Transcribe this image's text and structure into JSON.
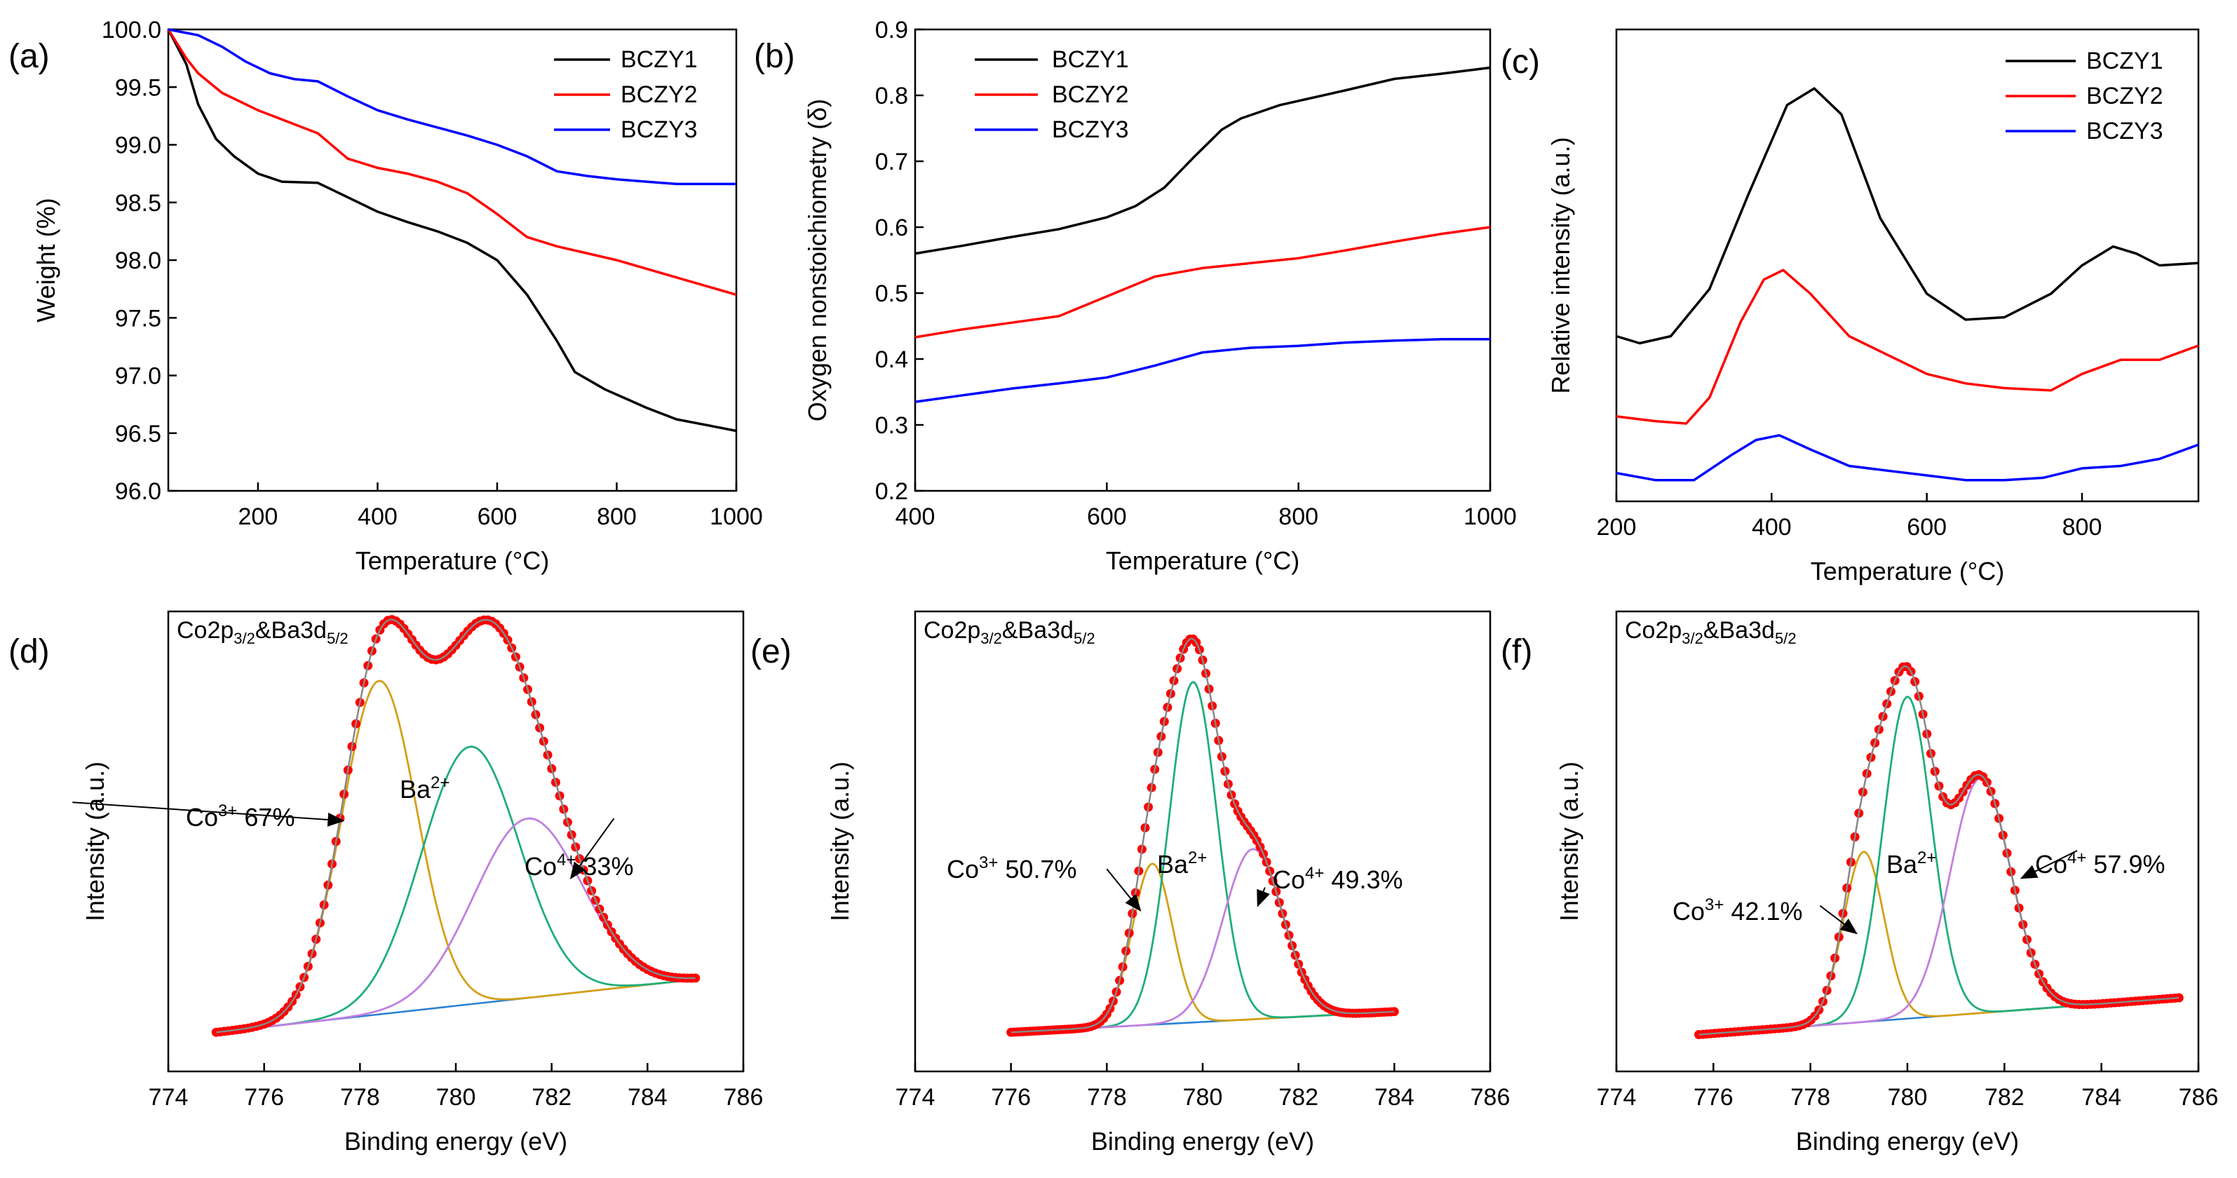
{
  "chart_data": [
    {
      "id": "a",
      "type": "line",
      "panel_label": "(a)",
      "title": "",
      "xlabel": "Temperature (°C)",
      "ylabel": "Weight (%)",
      "xlim": [
        50,
        1000
      ],
      "ylim": [
        96.0,
        100.0
      ],
      "xticks": [
        200,
        400,
        600,
        800,
        1000
      ],
      "xtick_labels": [
        "200",
        "400",
        "600",
        "800",
        "1000"
      ],
      "yticks": [
        96.0,
        96.5,
        97.0,
        97.5,
        98.0,
        98.5,
        99.0,
        99.5,
        100.0
      ],
      "ytick_labels": [
        "96.0",
        "96.5",
        "97.0",
        "97.5",
        "98.0",
        "98.5",
        "99.0",
        "99.5",
        "100.0"
      ],
      "legend": "top-right",
      "grid": false,
      "series": [
        {
          "name": "BCZY1",
          "color": "#000000",
          "x": [
            50,
            80,
            100,
            130,
            160,
            200,
            240,
            300,
            340,
            400,
            450,
            500,
            550,
            600,
            650,
            700,
            730,
            780,
            850,
            900,
            950,
            1000
          ],
          "y": [
            100.0,
            99.7,
            99.35,
            99.05,
            98.9,
            98.75,
            98.68,
            98.67,
            98.57,
            98.42,
            98.33,
            98.25,
            98.15,
            98.0,
            97.7,
            97.3,
            97.03,
            96.88,
            96.72,
            96.62,
            96.57,
            96.52
          ]
        },
        {
          "name": "BCZY2",
          "color": "#ff0000",
          "x": [
            50,
            80,
            100,
            140,
            200,
            250,
            300,
            350,
            400,
            450,
            500,
            550,
            600,
            650,
            700,
            800,
            900,
            1000
          ],
          "y": [
            100.0,
            99.75,
            99.62,
            99.45,
            99.3,
            99.2,
            99.1,
            98.88,
            98.8,
            98.75,
            98.68,
            98.58,
            98.4,
            98.2,
            98.12,
            98.0,
            97.85,
            97.7
          ]
        },
        {
          "name": "BCZY3",
          "color": "#0000ff",
          "x": [
            50,
            100,
            140,
            180,
            220,
            260,
            300,
            350,
            400,
            450,
            500,
            550,
            600,
            650,
            700,
            750,
            800,
            850,
            900,
            950,
            1000
          ],
          "y": [
            100.0,
            99.95,
            99.85,
            99.72,
            99.62,
            99.57,
            99.55,
            99.42,
            99.3,
            99.22,
            99.15,
            99.08,
            99.0,
            98.9,
            98.77,
            98.73,
            98.7,
            98.68,
            98.66,
            98.66,
            98.66
          ]
        }
      ]
    },
    {
      "id": "b",
      "type": "line",
      "panel_label": "(b)",
      "title": "",
      "xlabel": "Temperature (°C)",
      "ylabel": "Oxygen nonstoichiometry (δ)",
      "xlim": [
        400,
        1000
      ],
      "ylim": [
        0.2,
        0.9
      ],
      "xticks": [
        400,
        600,
        800,
        1000
      ],
      "xtick_labels": [
        "400",
        "600",
        "800",
        "1000"
      ],
      "yticks": [
        0.2,
        0.3,
        0.4,
        0.5,
        0.6,
        0.7,
        0.8,
        0.9
      ],
      "ytick_labels": [
        "0.2",
        "0.3",
        "0.4",
        "0.5",
        "0.6",
        "0.7",
        "0.8",
        "0.9"
      ],
      "legend": "top-left",
      "grid": false,
      "series": [
        {
          "name": "BCZY1",
          "color": "#000000",
          "x": [
            400,
            450,
            500,
            550,
            600,
            630,
            660,
            690,
            720,
            740,
            780,
            850,
            900,
            950,
            1000
          ],
          "y": [
            0.56,
            0.572,
            0.585,
            0.597,
            0.615,
            0.632,
            0.66,
            0.705,
            0.748,
            0.765,
            0.785,
            0.808,
            0.825,
            0.833,
            0.842
          ]
        },
        {
          "name": "BCZY2",
          "color": "#ff0000",
          "x": [
            400,
            450,
            500,
            550,
            600,
            650,
            700,
            800,
            850,
            900,
            950,
            1000
          ],
          "y": [
            0.433,
            0.445,
            0.455,
            0.465,
            0.495,
            0.525,
            0.538,
            0.553,
            0.565,
            0.578,
            0.59,
            0.6
          ]
        },
        {
          "name": "BCZY3",
          "color": "#0000ff",
          "x": [
            400,
            450,
            500,
            550,
            600,
            650,
            700,
            750,
            800,
            850,
            900,
            950,
            1000
          ],
          "y": [
            0.335,
            0.345,
            0.355,
            0.363,
            0.372,
            0.39,
            0.41,
            0.417,
            0.42,
            0.425,
            0.428,
            0.43,
            0.43
          ]
        }
      ]
    },
    {
      "id": "c",
      "type": "line",
      "panel_label": "(c)",
      "title": "",
      "xlabel": "Temperature (°C)",
      "ylabel": "Relative intensity (a.u.)",
      "xlim": [
        200,
        950
      ],
      "ylim": [
        0,
        1
      ],
      "xticks": [
        200,
        400,
        600,
        800
      ],
      "xtick_labels": [
        "200",
        "400",
        "600",
        "800"
      ],
      "yticks": [],
      "ytick_labels": [],
      "legend": "top-right",
      "grid": false,
      "series": [
        {
          "name": "BCZY1",
          "color": "#000000",
          "x": [
            200,
            230,
            270,
            320,
            370,
            420,
            455,
            490,
            540,
            600,
            650,
            700,
            760,
            800,
            840,
            870,
            900,
            950
          ],
          "y": [
            0.35,
            0.335,
            0.35,
            0.45,
            0.65,
            0.84,
            0.875,
            0.82,
            0.6,
            0.44,
            0.385,
            0.39,
            0.44,
            0.5,
            0.54,
            0.525,
            0.5,
            0.505
          ]
        },
        {
          "name": "BCZY2",
          "color": "#ff0000",
          "x": [
            200,
            250,
            290,
            320,
            360,
            390,
            415,
            450,
            500,
            550,
            600,
            650,
            700,
            760,
            800,
            850,
            900,
            950
          ],
          "y": [
            0.18,
            0.17,
            0.165,
            0.22,
            0.38,
            0.47,
            0.49,
            0.44,
            0.35,
            0.31,
            0.27,
            0.25,
            0.24,
            0.235,
            0.27,
            0.3,
            0.3,
            0.33
          ]
        },
        {
          "name": "BCZY3",
          "color": "#0000ff",
          "x": [
            200,
            250,
            300,
            350,
            380,
            410,
            450,
            500,
            550,
            600,
            650,
            700,
            750,
            800,
            850,
            900,
            950
          ],
          "y": [
            0.06,
            0.045,
            0.045,
            0.1,
            0.13,
            0.14,
            0.11,
            0.075,
            0.065,
            0.055,
            0.045,
            0.045,
            0.05,
            0.07,
            0.075,
            0.09,
            0.12
          ]
        }
      ]
    },
    {
      "id": "d",
      "type": "line",
      "panel_label": "(d)",
      "title": "",
      "annotation_title": "Co2p3/2&Ba3d5/2",
      "xlabel": "Binding energy (eV)",
      "ylabel": "Intensity (a.u.)",
      "xlim": [
        774,
        786
      ],
      "ylim": [
        0,
        1
      ],
      "xticks": [
        774,
        776,
        778,
        780,
        782,
        784,
        786
      ],
      "xtick_labels": [
        "774",
        "776",
        "778",
        "780",
        "782",
        "784",
        "786"
      ],
      "yticks": [],
      "ytick_labels": [],
      "grid": false,
      "x_start": 775,
      "x_end": 785,
      "background": {
        "y_start": 0.085,
        "y_end": 0.2
      },
      "peaks": [
        {
          "name": "Co3+",
          "center": 778.4,
          "height": 0.725,
          "sigma": 0.78,
          "color": "#d4a017"
        },
        {
          "name": "Ba2+",
          "center": 780.3,
          "height": 0.56,
          "sigma": 1.02,
          "color": "#1fae7a"
        },
        {
          "name": "Co4+",
          "center": 781.5,
          "height": 0.39,
          "sigma": 1.12,
          "color": "#c080e0"
        }
      ],
      "annotations": [
        {
          "label": "Co3+ 67%",
          "base": "Co",
          "sup": "3+",
          "suffix": " 67%"
        },
        {
          "label": "Ba2+",
          "base": "Ba",
          "sup": "2+",
          "suffix": ""
        },
        {
          "label": "Co4+ 33%",
          "base": "Co",
          "sup": "4+",
          "suffix": " 33%"
        }
      ]
    },
    {
      "id": "e",
      "type": "line",
      "panel_label": "(e)",
      "title": "",
      "annotation_title": "Co2p3/2&Ba3d5/2",
      "xlabel": "Binding energy (eV)",
      "ylabel": "Intensity (a.u.)",
      "xlim": [
        774,
        786
      ],
      "ylim": [
        0,
        1
      ],
      "xticks": [
        774,
        776,
        778,
        780,
        782,
        784,
        786
      ],
      "xtick_labels": [
        "774",
        "776",
        "778",
        "780",
        "782",
        "784",
        "786"
      ],
      "yticks": [],
      "ytick_labels": [],
      "grid": false,
      "x_start": 776,
      "x_end": 784,
      "background": {
        "y_start": 0.085,
        "y_end": 0.13
      },
      "peaks": [
        {
          "name": "Co3+",
          "center": 778.95,
          "height": 0.35,
          "sigma": 0.42,
          "color": "#d4a017"
        },
        {
          "name": "Ba2+",
          "center": 779.8,
          "height": 0.74,
          "sigma": 0.5,
          "color": "#1fae7a"
        },
        {
          "name": "Co4+",
          "center": 781.05,
          "height": 0.37,
          "sigma": 0.62,
          "color": "#c080e0"
        }
      ],
      "annotations": [
        {
          "label": "Co3+ 50.7%",
          "base": "Co",
          "sup": "3+",
          "suffix": " 50.7%"
        },
        {
          "label": "Ba2+",
          "base": "Ba",
          "sup": "2+",
          "suffix": ""
        },
        {
          "label": "Co4+ 49.3%",
          "base": "Co",
          "sup": "4+",
          "suffix": " 49.3%"
        }
      ]
    },
    {
      "id": "f",
      "type": "line",
      "panel_label": "(f)",
      "title": "",
      "annotation_title": "Co2p3/2&Ba3d5/2",
      "xlabel": "Binding energy (eV)",
      "ylabel": "Intensity (a.u.)",
      "xlim": [
        774,
        786
      ],
      "ylim": [
        0,
        1
      ],
      "xticks": [
        774,
        776,
        778,
        780,
        782,
        784,
        786
      ],
      "xtick_labels": [
        "774",
        "776",
        "778",
        "780",
        "782",
        "784",
        "786"
      ],
      "yticks": [],
      "ytick_labels": [],
      "grid": false,
      "x_start": 775.7,
      "x_end": 785.6,
      "background": {
        "y_start": 0.08,
        "y_end": 0.16
      },
      "peaks": [
        {
          "name": "Co3+",
          "center": 779.1,
          "height": 0.37,
          "sigma": 0.42,
          "color": "#d4a017"
        },
        {
          "name": "Ba2+",
          "center": 780.0,
          "height": 0.7,
          "sigma": 0.5,
          "color": "#1fae7a"
        },
        {
          "name": "Co4+",
          "center": 781.5,
          "height": 0.51,
          "sigma": 0.62,
          "color": "#c080e0"
        }
      ],
      "annotations": [
        {
          "label": "Co3+ 42.1%",
          "base": "Co",
          "sup": "3+",
          "suffix": " 42.1%"
        },
        {
          "label": "Ba2+",
          "base": "Ba",
          "sup": "2+",
          "suffix": ""
        },
        {
          "label": "Co4+ 57.9%",
          "base": "Co",
          "sup": "4+",
          "suffix": " 57.9%"
        }
      ]
    }
  ],
  "styles": {
    "fit_envelope_color": "#888888",
    "background_line_color": "#2a7fd4",
    "data_point_color": "#ff0000"
  }
}
